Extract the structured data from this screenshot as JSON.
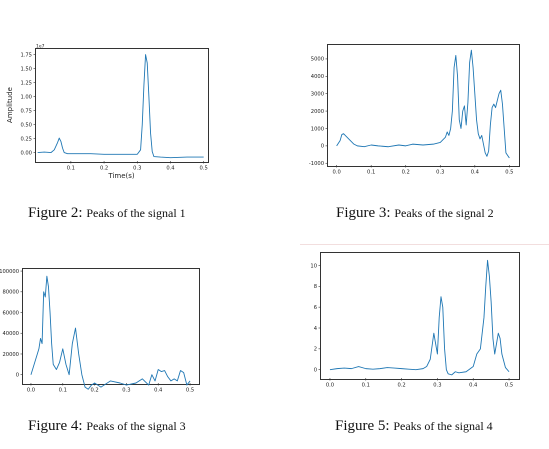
{
  "figures": [
    {
      "caption_label": "Figure 2:",
      "caption_text": "Peaks of the signal 1",
      "chart_data": {
        "type": "line",
        "title": "",
        "xlabel": "Time(s)",
        "ylabel": "Amplitude",
        "offset_label": "1e7",
        "xlim": [
          -0.005,
          0.51
        ],
        "ylim": [
          -0.15,
          1.85
        ],
        "xticks": [
          0.1,
          0.2,
          0.3,
          0.4,
          0.5
        ],
        "xtick_labels": [
          "0.1",
          "0.2",
          "0.3",
          "0.4",
          "0.5"
        ],
        "yticks": [
          0.0,
          0.25,
          0.5,
          0.75,
          1.0,
          1.25,
          1.5,
          1.75
        ],
        "ytick_labels": [
          "0.00",
          "0.25",
          "0.50",
          "0.75",
          "1.00",
          "1.25",
          "1.50",
          "1.75"
        ],
        "series": [
          {
            "color": "#1f77b4",
            "x": [
              0.0,
              0.02,
              0.04,
              0.05,
              0.06,
              0.065,
              0.07,
              0.075,
              0.08,
              0.09,
              0.1,
              0.13,
              0.16,
              0.2,
              0.24,
              0.27,
              0.3,
              0.31,
              0.315,
              0.32,
              0.325,
              0.33,
              0.335,
              0.34,
              0.345,
              0.35,
              0.37,
              0.4,
              0.45,
              0.5
            ],
            "y": [
              0.0,
              0.01,
              0.0,
              0.05,
              0.18,
              0.26,
              0.2,
              0.08,
              0.0,
              -0.02,
              -0.02,
              -0.02,
              -0.02,
              -0.03,
              -0.03,
              -0.03,
              -0.03,
              0.05,
              0.5,
              1.2,
              1.75,
              1.6,
              1.0,
              0.35,
              0.02,
              -0.07,
              -0.08,
              -0.09,
              -0.08,
              -0.08
            ]
          }
        ]
      }
    },
    {
      "caption_label": "Figure 3:",
      "caption_text": "Peaks of the signal 2",
      "chart_data": {
        "type": "line",
        "title": "",
        "xlabel": "",
        "ylabel": "",
        "xlim": [
          -0.025,
          0.525
        ],
        "ylim": [
          -1100,
          5800
        ],
        "xticks": [
          0.0,
          0.1,
          0.2,
          0.3,
          0.4,
          0.5
        ],
        "xtick_labels": [
          "0.0",
          "0.1",
          "0.2",
          "0.3",
          "0.4",
          "0.5"
        ],
        "yticks": [
          -1000,
          0,
          1000,
          2000,
          3000,
          4000,
          5000
        ],
        "ytick_labels": [
          "-1000",
          "0",
          "1000",
          "2000",
          "3000",
          "4000",
          "5000"
        ],
        "series": [
          {
            "color": "#1f77b4",
            "x": [
              0.0,
              0.005,
              0.01,
              0.015,
              0.02,
              0.03,
              0.04,
              0.05,
              0.06,
              0.08,
              0.1,
              0.12,
              0.15,
              0.18,
              0.2,
              0.22,
              0.25,
              0.28,
              0.3,
              0.315,
              0.32,
              0.325,
              0.33,
              0.335,
              0.34,
              0.345,
              0.35,
              0.355,
              0.36,
              0.365,
              0.37,
              0.375,
              0.38,
              0.385,
              0.39,
              0.395,
              0.4,
              0.405,
              0.41,
              0.415,
              0.42,
              0.43,
              0.435,
              0.44,
              0.445,
              0.45,
              0.455,
              0.46,
              0.465,
              0.47,
              0.475,
              0.48,
              0.49,
              0.5
            ],
            "y": [
              0,
              150,
              300,
              650,
              700,
              500,
              300,
              100,
              0,
              -50,
              50,
              0,
              -50,
              50,
              0,
              100,
              50,
              100,
              200,
              500,
              800,
              600,
              1000,
              2000,
              4500,
              5200,
              4000,
              1500,
              1000,
              2000,
              2300,
              1200,
              2500,
              4800,
              5500,
              4500,
              3000,
              1500,
              700,
              400,
              600,
              -400,
              -600,
              -300,
              1200,
              2200,
              2400,
              2200,
              2600,
              3000,
              3200,
              2400,
              -400,
              -700
            ]
          }
        ]
      }
    },
    {
      "caption_label": "Figure 4:",
      "caption_text": "Peaks of the signal 3",
      "chart_data": {
        "type": "line",
        "title": "",
        "xlabel": "",
        "ylabel": "",
        "xlim": [
          -0.025,
          0.525
        ],
        "ylim": [
          -8000,
          102000
        ],
        "xticks": [
          0.0,
          0.1,
          0.2,
          0.3,
          0.4,
          0.5
        ],
        "xtick_labels": [
          "0.0",
          "0.1",
          "0.2",
          "0.3",
          "0.4",
          "0.5"
        ],
        "yticks": [
          0,
          20000,
          40000,
          60000,
          80000,
          100000
        ],
        "ytick_labels": [
          "0",
          "20000",
          "40000",
          "60000",
          "80000",
          "100000"
        ],
        "series": [
          {
            "color": "#1f77b4",
            "x": [
              0.0,
              0.01,
              0.02,
              0.025,
              0.03,
              0.035,
              0.04,
              0.045,
              0.05,
              0.055,
              0.06,
              0.065,
              0.07,
              0.08,
              0.09,
              0.1,
              0.11,
              0.12,
              0.13,
              0.14,
              0.15,
              0.16,
              0.17,
              0.18,
              0.19,
              0.2,
              0.22,
              0.25,
              0.28,
              0.3,
              0.33,
              0.35,
              0.37,
              0.38,
              0.39,
              0.4,
              0.41,
              0.42,
              0.43,
              0.44,
              0.45,
              0.46,
              0.47,
              0.48,
              0.49,
              0.5
            ],
            "y": [
              0,
              10000,
              20000,
              25000,
              35000,
              30000,
              80000,
              75000,
              95000,
              85000,
              60000,
              30000,
              10000,
              5000,
              12000,
              25000,
              10000,
              0,
              30000,
              45000,
              20000,
              0,
              -12000,
              -14000,
              -10000,
              -8000,
              -12000,
              -6000,
              -8000,
              -10000,
              -8000,
              -4000,
              -10000,
              0,
              -6000,
              5000,
              3000,
              4000,
              -2000,
              -6000,
              -4000,
              -6000,
              4000,
              2000,
              -10000,
              -6000
            ]
          }
        ]
      }
    },
    {
      "caption_label": "Figure 5:",
      "caption_text": "Peaks of the signal 4",
      "chart_data": {
        "type": "line",
        "title": "",
        "xlabel": "",
        "ylabel": "",
        "xlim": [
          -0.025,
          0.525
        ],
        "ylim": [
          -0.8,
          11.2
        ],
        "xticks": [
          0.0,
          0.1,
          0.2,
          0.3,
          0.4,
          0.5
        ],
        "xtick_labels": [
          "0.0",
          "0.1",
          "0.2",
          "0.3",
          "0.4",
          "0.5"
        ],
        "yticks": [
          0,
          2,
          4,
          6,
          8,
          10
        ],
        "ytick_labels": [
          "0",
          "2",
          "4",
          "6",
          "8",
          "10"
        ],
        "series": [
          {
            "color": "#1f77b4",
            "x": [
              0.0,
              0.02,
              0.04,
              0.06,
              0.08,
              0.1,
              0.12,
              0.14,
              0.16,
              0.18,
              0.2,
              0.22,
              0.24,
              0.26,
              0.27,
              0.28,
              0.29,
              0.295,
              0.3,
              0.305,
              0.31,
              0.315,
              0.32,
              0.325,
              0.33,
              0.34,
              0.35,
              0.36,
              0.38,
              0.4,
              0.41,
              0.42,
              0.43,
              0.435,
              0.44,
              0.445,
              0.45,
              0.455,
              0.46,
              0.465,
              0.47,
              0.475,
              0.48,
              0.49,
              0.5
            ],
            "y": [
              0,
              0.1,
              0.15,
              0.1,
              0.3,
              0.1,
              0.05,
              0.1,
              0.2,
              0.15,
              0.1,
              0.05,
              0.0,
              0.1,
              0.3,
              1.0,
              3.5,
              2.5,
              1.5,
              5.0,
              7.0,
              6.0,
              2.0,
              0.0,
              -0.4,
              -0.5,
              -0.2,
              -0.3,
              -0.2,
              0.3,
              1.5,
              2.0,
              5.0,
              8.0,
              10.5,
              9.0,
              6.5,
              3.0,
              1.5,
              2.5,
              3.5,
              3.0,
              1.5,
              0.2,
              -0.2
            ]
          }
        ]
      }
    }
  ]
}
